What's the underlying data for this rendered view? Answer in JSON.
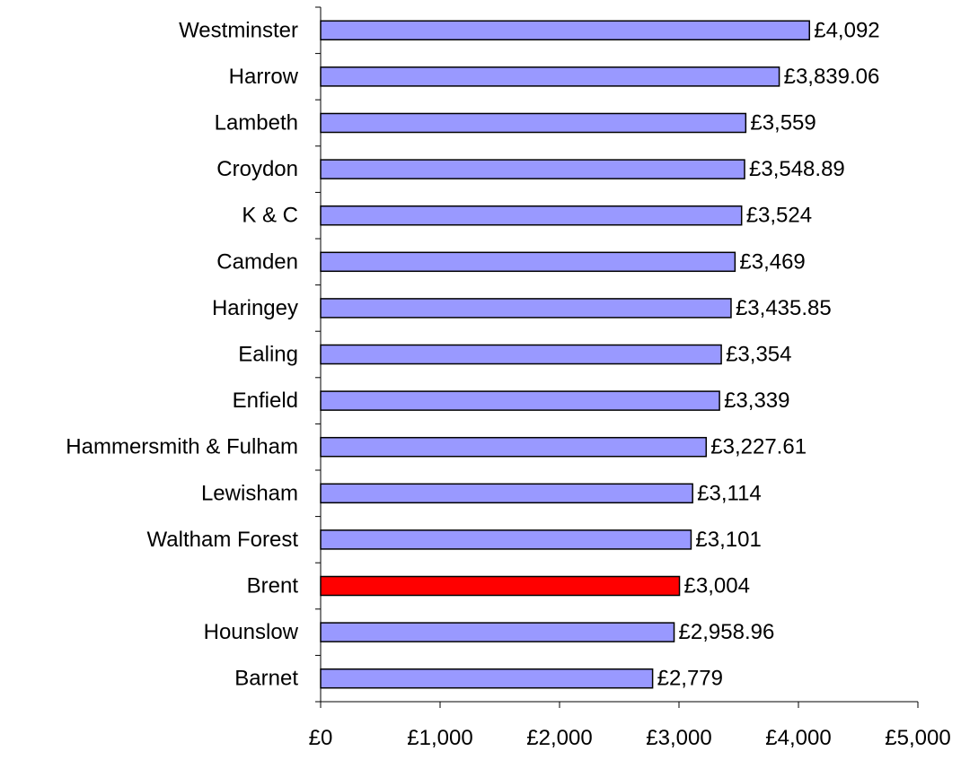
{
  "chart_data": {
    "type": "bar",
    "orientation": "horizontal",
    "title": "",
    "xlabel": "",
    "ylabel": "",
    "categories": [
      "Westminster",
      "Harrow",
      "Lambeth",
      "Croydon",
      "K & C",
      "Camden",
      "Haringey",
      "Ealing",
      "Enfield",
      "Hammersmith & Fulham",
      "Lewisham",
      "Waltham Forest",
      "Brent",
      "Hounslow",
      "Barnet"
    ],
    "values": [
      4092,
      3839.06,
      3559,
      3548.89,
      3524,
      3469,
      3435.85,
      3354,
      3339,
      3227.61,
      3114,
      3101,
      3004,
      2958.96,
      2779
    ],
    "value_labels": [
      "£4,092",
      "£3,839.06",
      "£3,559",
      "£3,548.89",
      "£3,524",
      "£3,469",
      "£3,435.85",
      "£3,354",
      "£3,339",
      "£3,227.61",
      "£3,114",
      "£3,101",
      "£3,004",
      "£2,958.96",
      "£2,779"
    ],
    "xlim": [
      0,
      5000
    ],
    "x_ticks": [
      0,
      1000,
      2000,
      3000,
      4000,
      5000
    ],
    "x_tick_labels": [
      "£0",
      "£1,000",
      "£2,000",
      "£3,000",
      "£4,000",
      "£5,000"
    ],
    "colors": {
      "default_bar": "#9999ff",
      "highlight_bar": "#ff0000"
    },
    "highlight_category": "Brent",
    "grid": false,
    "legend": "none"
  }
}
